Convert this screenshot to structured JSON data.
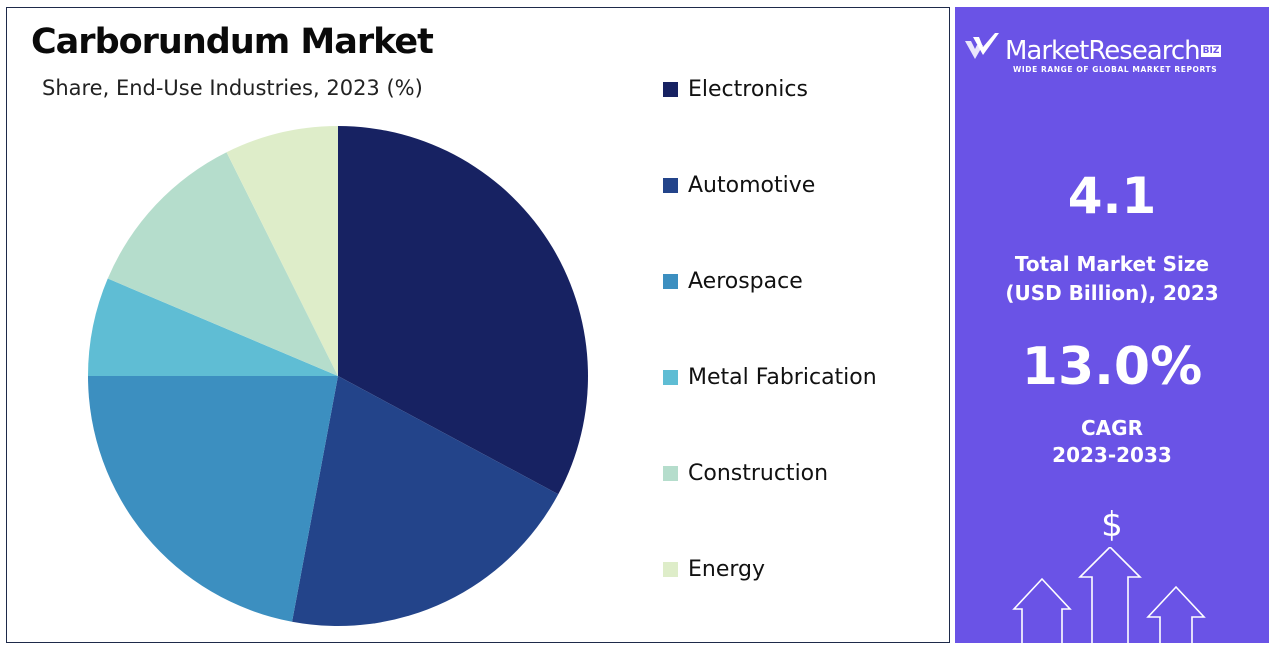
{
  "report": {
    "title": "Carborundum Market",
    "subtitle": "Share, End-Use Industries, 2023 (%)"
  },
  "chart_data": {
    "type": "pie",
    "categories": [
      "Electronics",
      "Automotive",
      "Aerospace",
      "Metal Fabrication",
      "Construction",
      "Energy"
    ],
    "values": [
      33.5,
      20.5,
      22.5,
      6.5,
      11.5,
      7.5
    ],
    "colors": [
      "#172262",
      "#23448a",
      "#3c8fc0",
      "#5fbdd4",
      "#b5ddcc",
      "#deedc9"
    ],
    "start_angle_deg": 0,
    "direction": "clockwise",
    "legend_position": "right"
  },
  "brand": {
    "name": "MarketResearch",
    "badge": "BIZ",
    "tagline": "WIDE RANGE OF GLOBAL MARKET REPORTS"
  },
  "stats": {
    "market_size_value": "4.1",
    "market_size_label_line1": "Total Market Size",
    "market_size_label_line2": "(USD Billion), 2023",
    "cagr_value": "13.0%",
    "cagr_label_line1": "CAGR",
    "cagr_label_line2": "2023-2033"
  },
  "icons": {
    "brand_logo": "check-chevron-icon",
    "dollar": "dollar-sign-icon",
    "growth": "up-arrows-icon"
  },
  "colors": {
    "side_panel": "#6a53e6"
  }
}
